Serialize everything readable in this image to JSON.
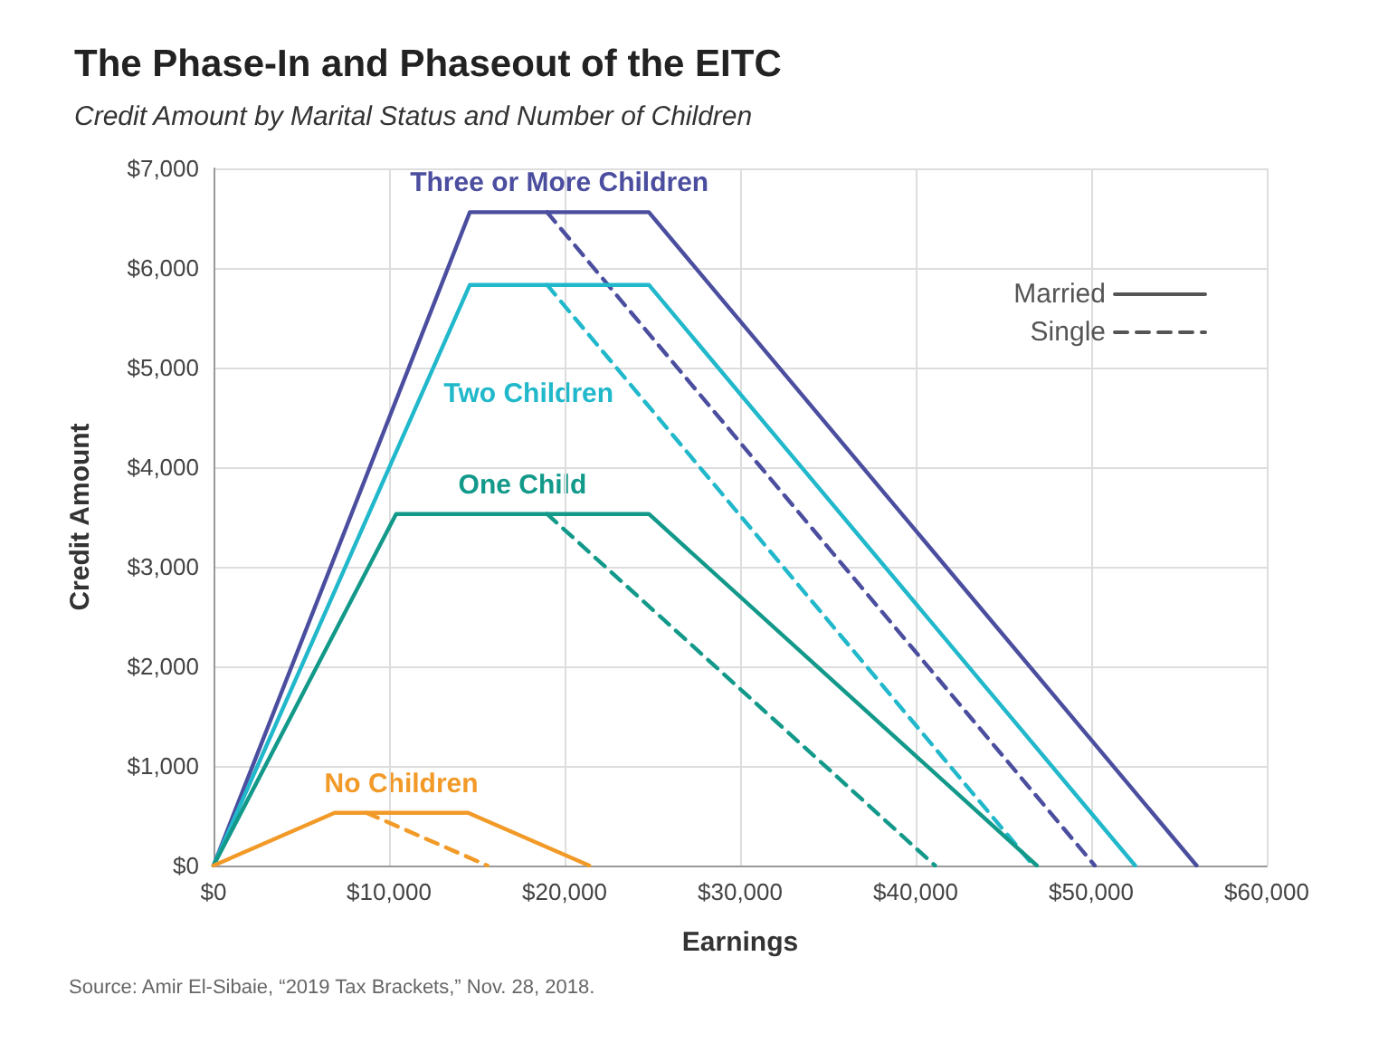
{
  "chart_data": {
    "type": "line",
    "title": "The Phase-In and Phaseout of the EITC",
    "subtitle": "Credit Amount by Marital Status and Number of Children",
    "xlabel": "Earnings",
    "ylabel": "Credit Amount",
    "xlim": [
      0,
      60000
    ],
    "xticks": [
      {
        "value": 0,
        "label": "$0"
      },
      {
        "value": 10000,
        "label": "$10,000"
      },
      {
        "value": 20000,
        "label": "$20,000"
      },
      {
        "value": 30000,
        "label": "$30,000"
      },
      {
        "value": 40000,
        "label": "$40,000"
      },
      {
        "value": 50000,
        "label": "$50,000"
      },
      {
        "value": 60000,
        "label": "$60,000"
      }
    ],
    "ylim": [
      0,
      7000
    ],
    "yticks": [
      {
        "value": 0,
        "label": "$0"
      },
      {
        "value": 1000,
        "label": "$1,000"
      },
      {
        "value": 2000,
        "label": "$2,000"
      },
      {
        "value": 3000,
        "label": "$3,000"
      },
      {
        "value": 4000,
        "label": "$4,000"
      },
      {
        "value": 5000,
        "label": "$5,000"
      },
      {
        "value": 6000,
        "label": "$6,000"
      },
      {
        "value": 7000,
        "label": "$7,000"
      }
    ],
    "grid": true,
    "legend": "top right",
    "marker": "none",
    "series": [
      {
        "name": "Three or More Children",
        "color": "#4b4e9f",
        "line_style": "solid",
        "x": [
          0,
          14600,
          24800,
          56000
        ],
        "values": [
          0,
          6560,
          6560,
          0
        ]
      },
      {
        "color": "#4b4e9f",
        "line_style": "dashed",
        "x": [
          19000,
          50200
        ],
        "values": [
          6560,
          0
        ]
      },
      {
        "name": "Two Children",
        "color": "#21b8cb",
        "line_style": "solid",
        "x": [
          0,
          14600,
          24800,
          52500
        ],
        "values": [
          0,
          5830,
          5830,
          0
        ]
      },
      {
        "color": "#21b8cb",
        "line_style": "dashed",
        "x": [
          19000,
          46700
        ],
        "values": [
          5830,
          0
        ]
      },
      {
        "name": "One Child",
        "color": "#12998a",
        "line_style": "solid",
        "x": [
          0,
          10400,
          24800,
          46900
        ],
        "values": [
          0,
          3530,
          3530,
          0
        ]
      },
      {
        "color": "#12998a",
        "line_style": "dashed",
        "x": [
          19000,
          41100
        ],
        "values": [
          3530,
          0
        ]
      },
      {
        "name": "No Children",
        "color": "#f29a28",
        "line_style": "solid",
        "x": [
          0,
          6900,
          14500,
          21400
        ],
        "values": [
          0,
          530,
          530,
          0
        ]
      },
      {
        "color": "#f29a28",
        "line_style": "dashed",
        "x": [
          8700,
          15600
        ],
        "values": [
          530,
          0
        ]
      },
      {
        "name": "Married",
        "color": "#555555",
        "line_style": "solid"
      },
      {
        "name": "Single",
        "color": "#555555",
        "line_style": "dashed"
      }
    ],
    "annotations": [
      "Source: Amir El-Sibaie, “2019 Tax Brackets,” Nov. 28, 2018."
    ]
  }
}
